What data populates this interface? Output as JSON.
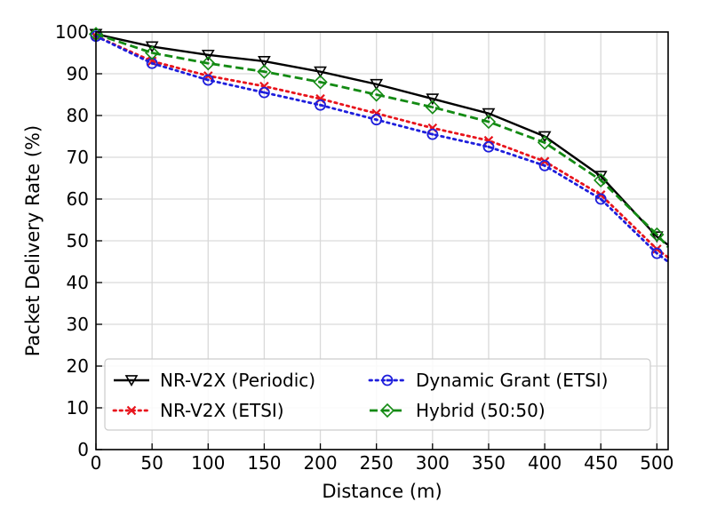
{
  "chart_data": {
    "type": "line",
    "xlabel": "Distance (m)",
    "ylabel": "Packet Delivery Rate (%)",
    "xlim": [
      0,
      510
    ],
    "ylim": [
      0,
      100
    ],
    "xticks": [
      0,
      50,
      100,
      150,
      200,
      250,
      300,
      350,
      400,
      450,
      500
    ],
    "yticks": [
      0,
      10,
      20,
      30,
      40,
      50,
      60,
      70,
      80,
      90,
      100
    ],
    "grid": true,
    "legend_position": "bottom-center",
    "x": [
      0,
      50,
      100,
      150,
      200,
      250,
      300,
      350,
      400,
      450,
      500
    ],
    "series": [
      {
        "name": "NR-V2X (Periodic)",
        "color": "#000000",
        "marker": "triangle-down",
        "dash": "solid",
        "values": [
          99.5,
          96.5,
          94.5,
          93.0,
          90.5,
          87.5,
          84.0,
          80.5,
          75.0,
          65.5,
          51.0
        ],
        "end": [
          510,
          49.0
        ]
      },
      {
        "name": "NR-V2X (ETSI)",
        "color": "#e8141c",
        "marker": "x",
        "dash": "dotted",
        "values": [
          99.0,
          93.0,
          89.5,
          87.0,
          84.0,
          80.5,
          77.0,
          74.0,
          69.0,
          61.0,
          48.0
        ],
        "end": [
          510,
          46.0
        ]
      },
      {
        "name": "Dynamic Grant (ETSI)",
        "color": "#1e1edc",
        "marker": "circle-dot",
        "dash": "dotted",
        "values": [
          99.0,
          92.5,
          88.5,
          85.5,
          82.5,
          79.0,
          75.5,
          72.5,
          68.0,
          60.0,
          47.0
        ],
        "end": [
          510,
          45.0
        ]
      },
      {
        "name": "Hybrid (50:50)",
        "color": "#138a13",
        "marker": "diamond-dot",
        "dash": "dashed",
        "values": [
          99.5,
          95.0,
          92.5,
          90.5,
          88.0,
          85.0,
          82.0,
          78.5,
          73.5,
          64.5,
          51.5
        ],
        "end": [
          510,
          48.5
        ]
      }
    ]
  }
}
